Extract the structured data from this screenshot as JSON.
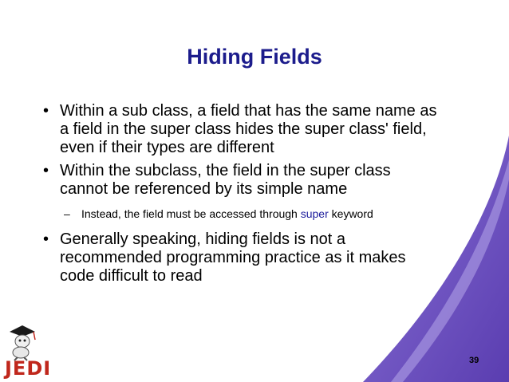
{
  "title": "Hiding Fields",
  "bullets": [
    {
      "text": "Within a sub class, a field that has the same name as a field in the super class hides the super class' field, even if their types are different",
      "lines": [
        "Within a sub class, a field that has the same name as",
        "a field in the super class hides the super class' field,",
        "even if their types are different"
      ]
    },
    {
      "lines": [
        "Within the subclass, the field in the super class",
        "cannot be referenced by its simple name"
      ],
      "sub": {
        "before": "Instead, the field must be accessed through ",
        "keyword": "super",
        "after": " keyword"
      }
    },
    {
      "lines": [
        "Generally speaking, hiding fields is not a",
        "recommended programming practice as it makes",
        "code difficult to read"
      ]
    }
  ],
  "bullet_glyph": "•",
  "sub_glyph": "–",
  "page_number": "39",
  "logo": {
    "text": "JEDI",
    "color": "#c0271c"
  },
  "colors": {
    "title": "#1c1c8c",
    "swoosh": "#6a4cc0",
    "keyword": "#1c1c9c"
  }
}
